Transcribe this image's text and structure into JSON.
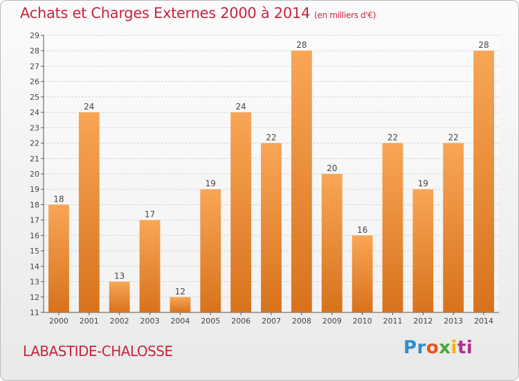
{
  "title": {
    "main": "Achats et Charges Externes 2000 à 2014",
    "unit": "(en milliers d'€)"
  },
  "commune": "LABASTIDE-CHALOSSE",
  "logo": {
    "letters": [
      "Pr",
      "o",
      "x",
      "i",
      "ti"
    ],
    "text": "Proxiti"
  },
  "colors": {
    "title": "#c8243e",
    "bar_top": "#f8a656",
    "bar_bottom": "#d8721c",
    "grid": "#d3d3d3"
  },
  "chart_data": {
    "type": "bar",
    "categories": [
      "2000",
      "2001",
      "2002",
      "2003",
      "2004",
      "2005",
      "2006",
      "2007",
      "2008",
      "2009",
      "2010",
      "2011",
      "2012",
      "2013",
      "2014"
    ],
    "values": [
      18,
      24,
      13,
      17,
      12,
      19,
      24,
      22,
      28,
      20,
      16,
      22,
      19,
      22,
      28
    ],
    "ylim": [
      11,
      29
    ],
    "yticks": [
      11,
      12,
      13,
      14,
      15,
      16,
      17,
      18,
      19,
      20,
      21,
      22,
      23,
      24,
      25,
      26,
      27,
      28,
      29
    ],
    "grid": true,
    "data_labels": true
  }
}
